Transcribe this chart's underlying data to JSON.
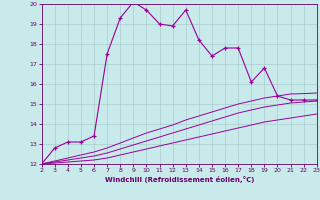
{
  "x_main": [
    2,
    3,
    4,
    5,
    6,
    7,
    8,
    9,
    10,
    11,
    12,
    13,
    14,
    15,
    16,
    17,
    18,
    19,
    20,
    21,
    22,
    23
  ],
  "y_main": [
    12.0,
    12.8,
    13.1,
    13.1,
    13.4,
    17.5,
    19.3,
    20.1,
    19.7,
    19.0,
    18.9,
    19.7,
    18.2,
    17.4,
    17.8,
    17.8,
    16.1,
    16.8,
    15.4,
    15.2,
    15.2,
    15.2
  ],
  "x_lower1": [
    2,
    3,
    4,
    5,
    6,
    7,
    8,
    9,
    10,
    11,
    12,
    13,
    14,
    15,
    16,
    17,
    18,
    19,
    20,
    21,
    22,
    23
  ],
  "y_lower1": [
    12.0,
    12.05,
    12.1,
    12.15,
    12.2,
    12.3,
    12.45,
    12.6,
    12.75,
    12.9,
    13.05,
    13.2,
    13.35,
    13.5,
    13.65,
    13.8,
    13.95,
    14.1,
    14.2,
    14.3,
    14.4,
    14.5
  ],
  "x_lower2": [
    2,
    3,
    4,
    5,
    6,
    7,
    8,
    9,
    10,
    11,
    12,
    13,
    14,
    15,
    16,
    17,
    18,
    19,
    20,
    21,
    22,
    23
  ],
  "y_lower2": [
    12.0,
    12.1,
    12.2,
    12.3,
    12.4,
    12.55,
    12.75,
    12.95,
    13.15,
    13.35,
    13.55,
    13.75,
    13.95,
    14.15,
    14.35,
    14.55,
    14.7,
    14.85,
    14.95,
    15.05,
    15.1,
    15.15
  ],
  "x_lower3": [
    2,
    3,
    4,
    5,
    6,
    7,
    8,
    9,
    10,
    11,
    12,
    13,
    14,
    15,
    16,
    17,
    18,
    19,
    20,
    21,
    22,
    23
  ],
  "y_lower3": [
    12.0,
    12.15,
    12.3,
    12.45,
    12.6,
    12.8,
    13.05,
    13.3,
    13.55,
    13.75,
    13.95,
    14.2,
    14.4,
    14.6,
    14.8,
    15.0,
    15.15,
    15.3,
    15.4,
    15.5,
    15.52,
    15.55
  ],
  "line_color": "#990099",
  "bg_color": "#c8eaea",
  "grid_color": "#aacccc",
  "xlabel": "Windchill (Refroidissement éolien,°C)",
  "xlabel_color": "#660066",
  "tick_color": "#660066",
  "ylim": [
    12,
    20
  ],
  "xlim": [
    2,
    23
  ],
  "yticks": [
    12,
    13,
    14,
    15,
    16,
    17,
    18,
    19,
    20
  ],
  "xticks": [
    2,
    3,
    4,
    5,
    6,
    7,
    8,
    9,
    10,
    11,
    12,
    13,
    14,
    15,
    16,
    17,
    18,
    19,
    20,
    21,
    22,
    23
  ]
}
